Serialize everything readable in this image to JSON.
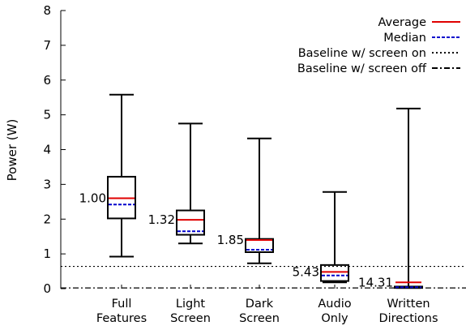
{
  "chart_data": {
    "type": "box",
    "title": "",
    "xlabel": "",
    "ylabel": "Power (W)",
    "ylim": [
      0,
      8
    ],
    "yticks": [
      0,
      1,
      2,
      3,
      4,
      5,
      6,
      7,
      8
    ],
    "grid": false,
    "legend_position": "top-right",
    "categories": [
      [
        "Full",
        "Features"
      ],
      [
        "Light",
        "Screen"
      ],
      [
        "Dark",
        "Screen"
      ],
      [
        "Audio",
        "Only"
      ],
      [
        "Written",
        "Directions"
      ]
    ],
    "boxes": [
      {
        "whisker_low": 0.92,
        "q1": 2.02,
        "median": 2.42,
        "mean": 2.6,
        "q3": 3.22,
        "whisker_high": 5.58,
        "ratio_label": "1.00"
      },
      {
        "whisker_low": 1.3,
        "q1": 1.55,
        "median": 1.65,
        "mean": 1.98,
        "q3": 2.25,
        "whisker_high": 4.75,
        "ratio_label": "1.32"
      },
      {
        "whisker_low": 0.73,
        "q1": 1.05,
        "median": 1.12,
        "mean": 1.4,
        "q3": 1.43,
        "whisker_high": 4.32,
        "ratio_label": "1.85"
      },
      {
        "whisker_low": 0.18,
        "q1": 0.22,
        "median": 0.38,
        "mean": 0.48,
        "q3": 0.68,
        "whisker_high": 2.78,
        "ratio_label": "5.43"
      },
      {
        "whisker_low": 0.02,
        "q1": 0.02,
        "median": 0.04,
        "mean": 0.18,
        "q3": 0.06,
        "whisker_high": 5.18,
        "ratio_label": "14.31"
      }
    ],
    "baselines": [
      {
        "name": "Baseline w/ screen on",
        "value": 0.64,
        "style": "dotted"
      },
      {
        "name": "Baseline w/ screen off",
        "value": 0.02,
        "style": "dashdot"
      }
    ],
    "legend": [
      {
        "name": "Average",
        "style": "solid",
        "color": "#e00000"
      },
      {
        "name": "Median",
        "style": "dashed",
        "color": "#0000cc"
      },
      {
        "name": "Baseline w/ screen on",
        "style": "dotted",
        "color": "#000000"
      },
      {
        "name": "Baseline w/ screen off",
        "style": "dashdot",
        "color": "#000000"
      }
    ],
    "colors": {
      "mean": "#e00000",
      "median": "#0000cc",
      "box": "#000000"
    }
  }
}
